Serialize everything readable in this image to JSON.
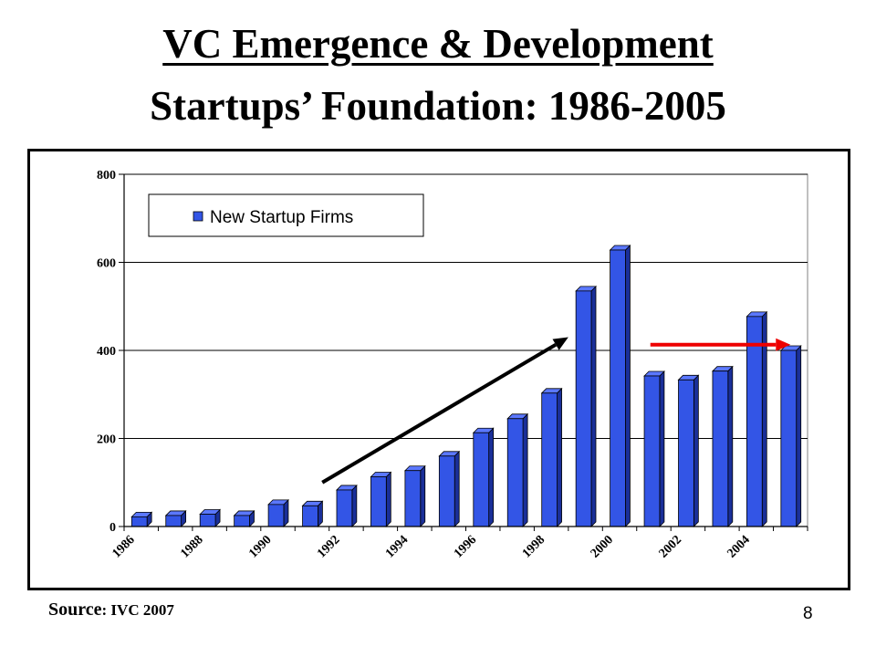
{
  "slide": {
    "title_line1": "VC Emergence & Development",
    "title_line2": "Startups’ Foundation: 1986-2005",
    "source_label": "Source",
    "source_value": ": IVC 2007",
    "page_number": "8"
  },
  "chart_data": {
    "type": "bar",
    "categories": [
      "1986",
      "1987",
      "1988",
      "1989",
      "1990",
      "1991",
      "1992",
      "1993",
      "1994",
      "1995",
      "1996",
      "1997",
      "1998",
      "1999",
      "2000",
      "2001",
      "2002",
      "2003",
      "2004",
      "2005"
    ],
    "x_tick_labels": [
      "1986",
      "1988",
      "1990",
      "1992",
      "1994",
      "1996",
      "1998",
      "2000",
      "2002",
      "2004"
    ],
    "series": [
      {
        "name": "New Startup Firms",
        "color": "#3355e6",
        "values": [
          22,
          25,
          28,
          25,
          50,
          47,
          83,
          113,
          127,
          160,
          213,
          245,
          303,
          535,
          628,
          342,
          333,
          353,
          477,
          400
        ]
      }
    ],
    "ylim": [
      0,
      800
    ],
    "y_ticks": [
      0,
      200,
      400,
      600,
      800
    ],
    "grid": true,
    "legend_position": "top-left",
    "annotations": [
      {
        "type": "arrow",
        "color": "#000000",
        "from": {
          "x": 1991.3,
          "y": 100
        },
        "to": {
          "x": 1998.5,
          "y": 430
        }
      },
      {
        "type": "arrow",
        "color": "#ee0000",
        "from": {
          "x": 2000.9,
          "y": 413
        },
        "to": {
          "x": 2005.0,
          "y": 413
        }
      }
    ]
  }
}
